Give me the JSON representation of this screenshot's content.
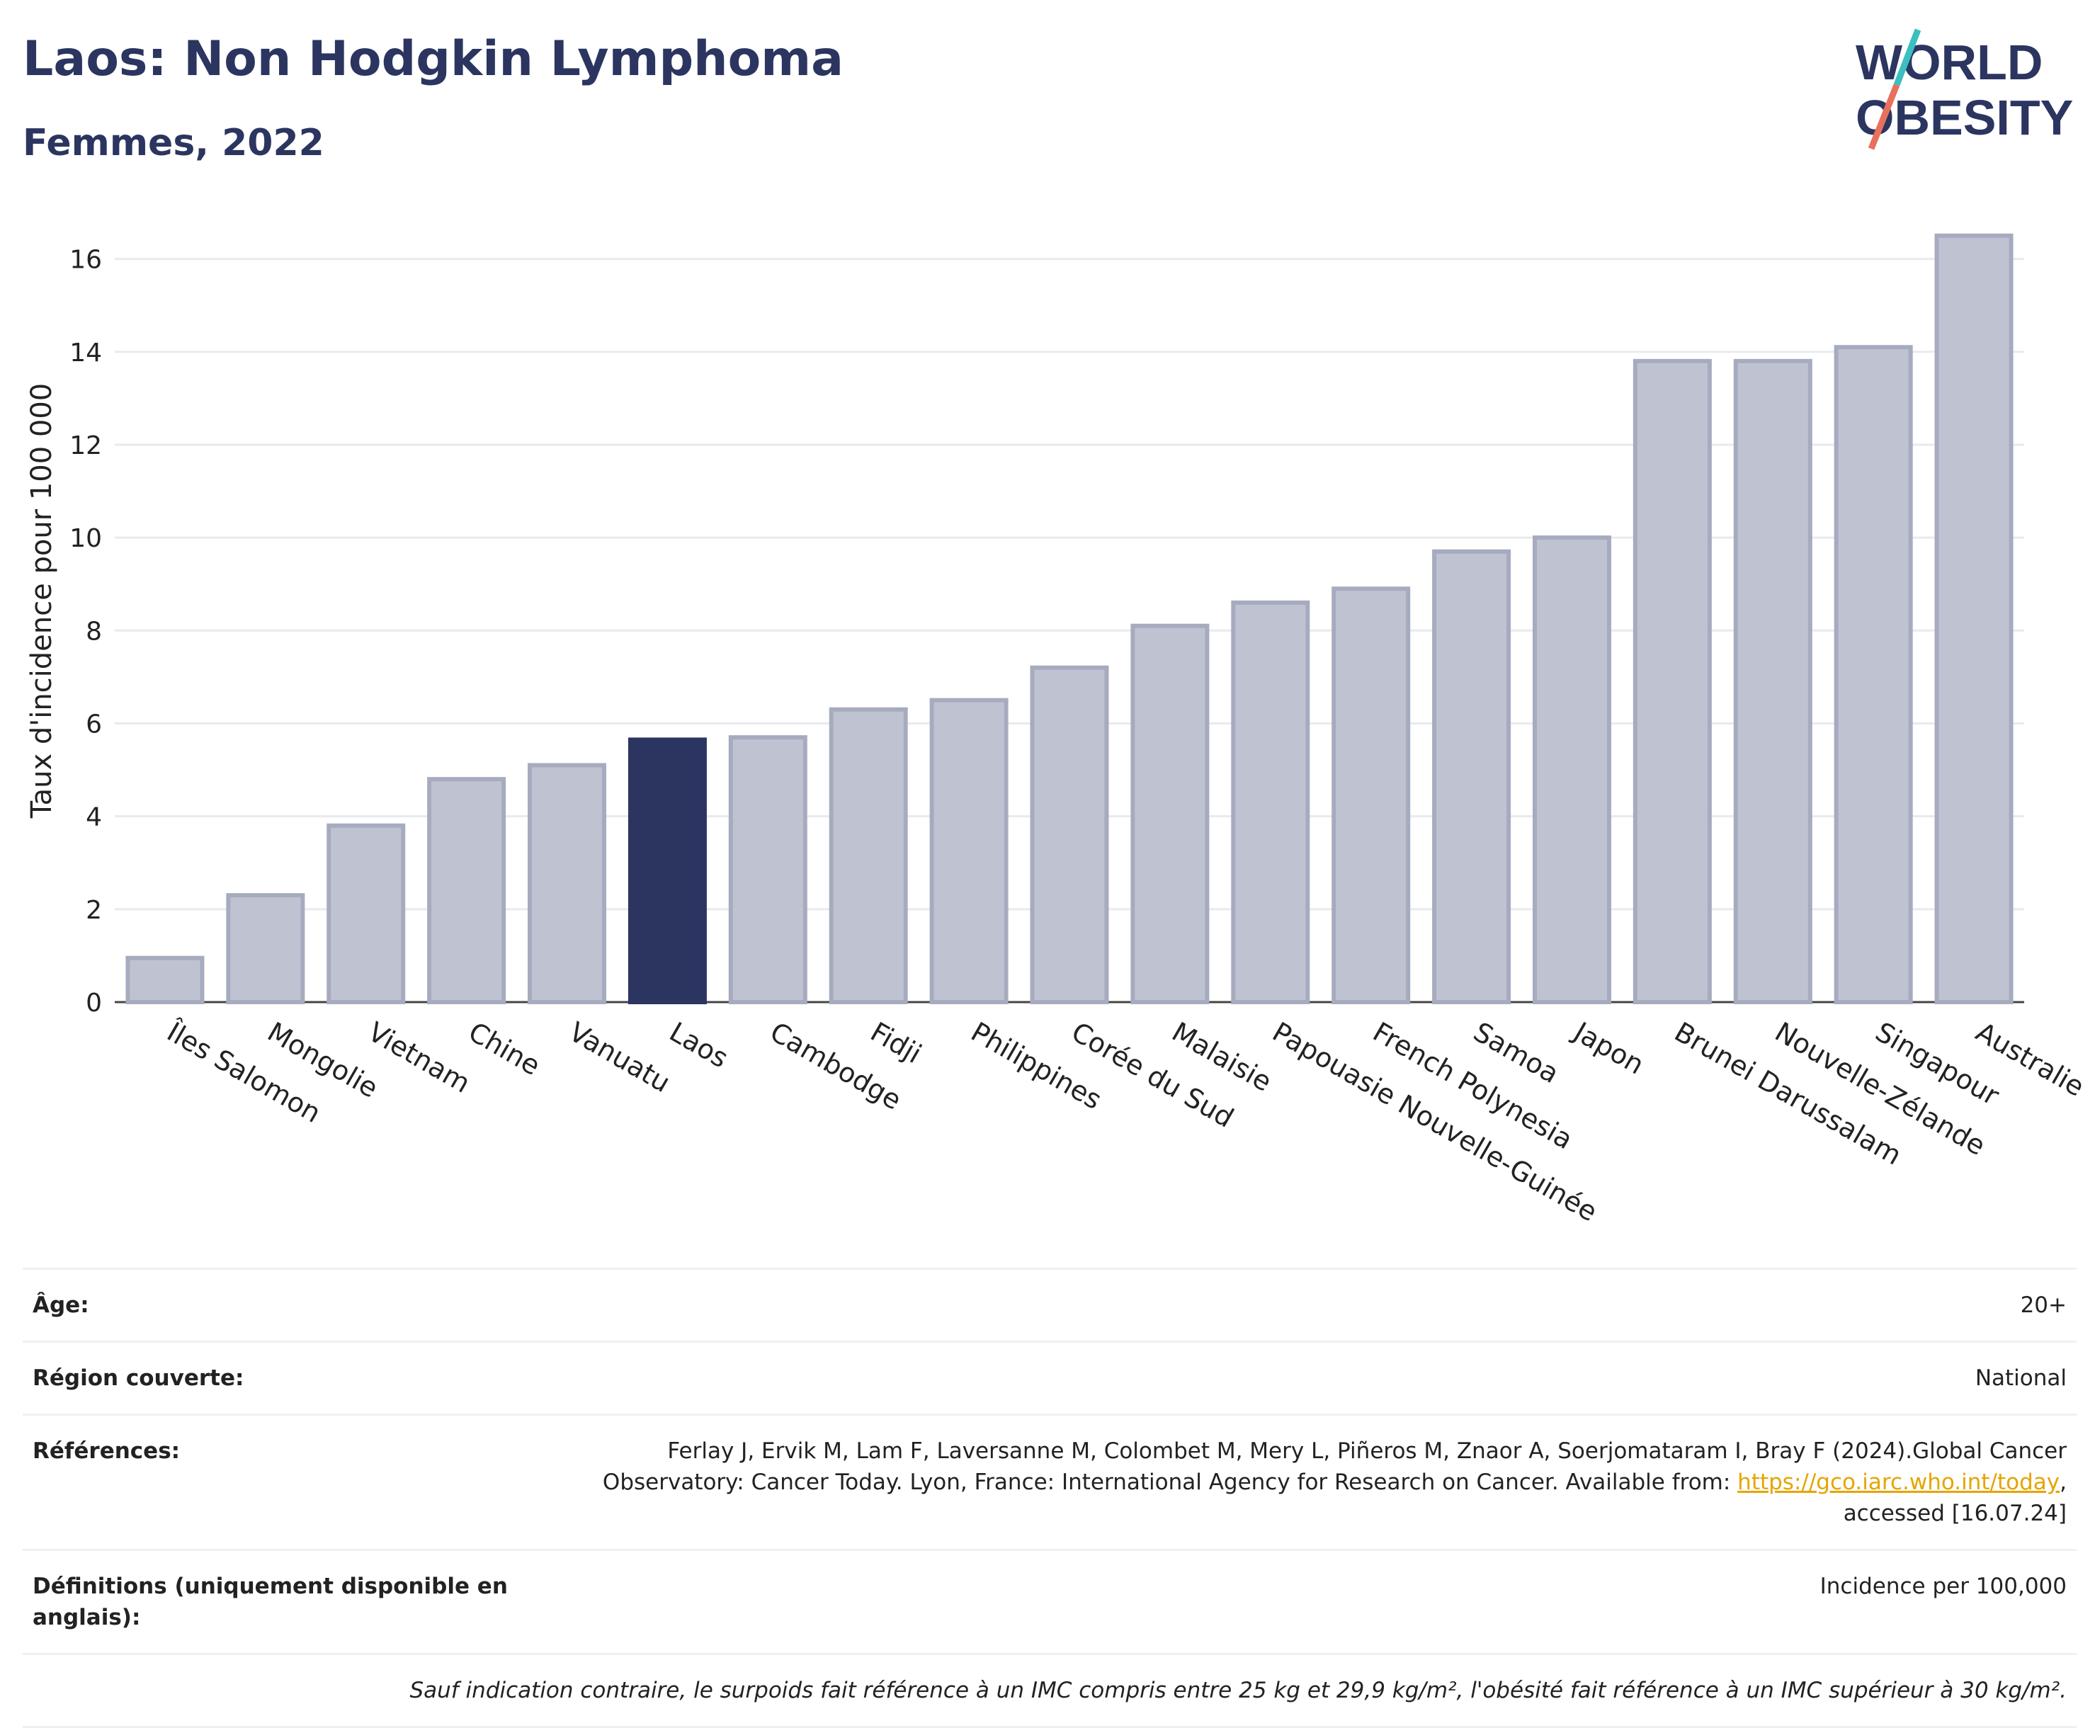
{
  "header": {
    "title": "Laos: Non Hodgkin Lymphoma",
    "subtitle": "Femmes, 2022",
    "logo_line1": "WORLD",
    "logo_line2": "OBESITY"
  },
  "colors": {
    "title": "#2b3560",
    "bar_default": "#bfc3d1",
    "bar_border": "#a6abbf",
    "bar_highlight": "#2b3560",
    "link": "#e5a500",
    "logo_teal": "#3bbfbf",
    "logo_coral": "#e8715e"
  },
  "chart_data": {
    "type": "bar",
    "title": "",
    "ylabel": "Taux d'incidence pour 100 000",
    "xlabel": "",
    "ylim": [
      0,
      17
    ],
    "yticks": [
      0,
      2,
      4,
      6,
      8,
      10,
      12,
      14,
      16
    ],
    "grid": true,
    "highlight": "Laos",
    "categories": [
      "Îles Salomon",
      "Mongolie",
      "Vietnam",
      "Chine",
      "Vanuatu",
      "Laos",
      "Cambodge",
      "Fidji",
      "Philippines",
      "Corée du Sud",
      "Malaisie",
      "Papouasie Nouvelle-Guinée",
      "French Polynesia",
      "Samoa",
      "Japon",
      "Brunei Darussalam",
      "Nouvelle-Zélande",
      "Singapour",
      "Australie"
    ],
    "values": [
      0.95,
      2.3,
      3.8,
      4.8,
      5.1,
      5.65,
      5.7,
      6.3,
      6.5,
      7.2,
      8.1,
      8.6,
      8.9,
      9.7,
      10.0,
      13.8,
      13.8,
      14.1,
      16.5
    ]
  },
  "meta": {
    "age_label": "Âge:",
    "age_value": "20+",
    "region_label": "Région couverte:",
    "region_value": "National",
    "refs_label": "Références:",
    "refs_text_1": "Ferlay J, Ervik M, Lam F, Laversanne M, Colombet M, Mery L, Piñeros M, Znaor A, Soerjomataram I, Bray F (2024).Global Cancer Observatory: Cancer Today. Lyon, France: International Agency for Research on Cancer. Available from: ",
    "refs_link": "https://gco.iarc.who.int/today",
    "refs_text_2": ", accessed [16.07.24]",
    "defs_label": "Définitions (uniquement disponible en anglais):",
    "defs_value": "Incidence per 100,000",
    "footnote": "Sauf indication contraire, le surpoids fait référence à un IMC compris entre 25 kg et 29,9 kg/m², l'obésité fait référence à un IMC supérieur à 30 kg/m²."
  }
}
